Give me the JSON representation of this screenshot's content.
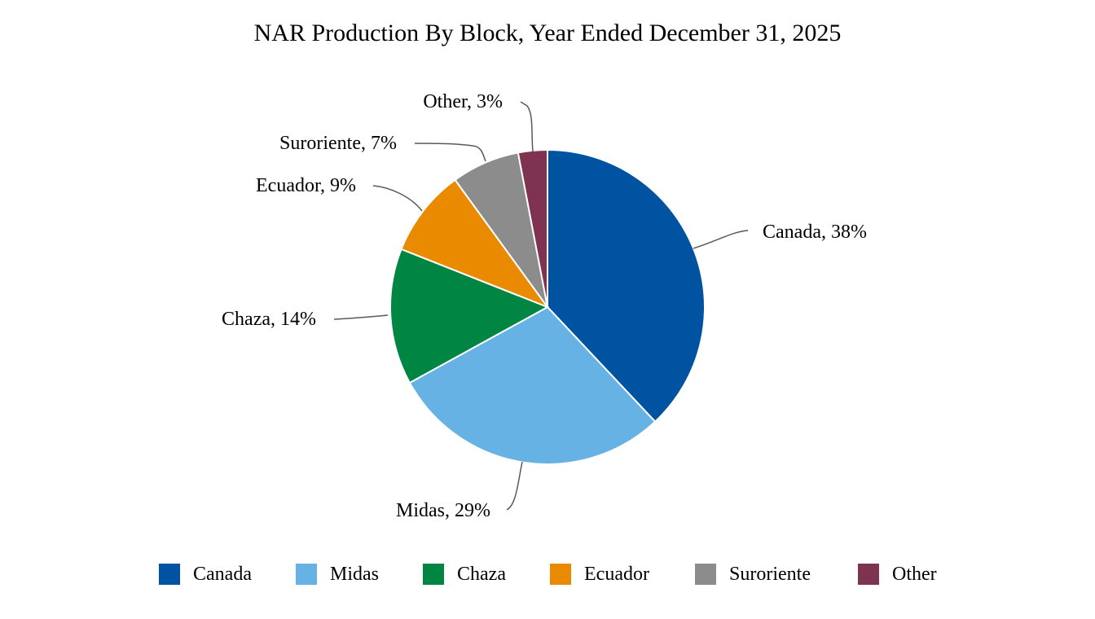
{
  "chart_data": {
    "type": "pie",
    "title": "NAR Production By Block, Year Ended December 31, 2025",
    "legend_position": "bottom",
    "slices": [
      {
        "name": "Canada",
        "value": 38,
        "label": "Canada, 38%",
        "color": "#0053A0"
      },
      {
        "name": "Midas",
        "value": 29,
        "label": "Midas, 29%",
        "color": "#66B2E4"
      },
      {
        "name": "Chaza",
        "value": 14,
        "label": "Chaza, 14%",
        "color": "#008542"
      },
      {
        "name": "Ecuador",
        "value": 9,
        "label": "Ecuador, 9%",
        "color": "#EA8A00"
      },
      {
        "name": "Suroriente",
        "value": 7,
        "label": "Suroriente, 7%",
        "color": "#8C8C8C"
      },
      {
        "name": "Other",
        "value": 3,
        "label": "Other, 3%",
        "color": "#7E3350"
      }
    ]
  }
}
